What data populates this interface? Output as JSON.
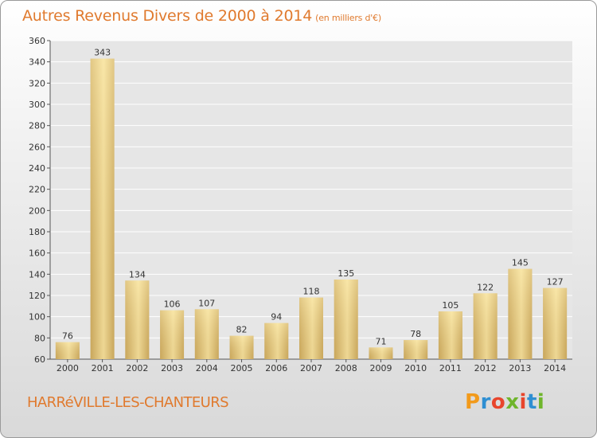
{
  "header": {
    "title": "Autres Revenus Divers de 2000 à 2014",
    "unit": "(en milliers d'€)"
  },
  "footer": {
    "commune": "HARRéVILLE-LES-CHANTEURS",
    "logo_letters": [
      "P",
      "r",
      "o",
      "x",
      "i",
      "t",
      "i"
    ],
    "logo_colors": [
      "#f29a1b",
      "#2f8fd2",
      "#e8452c",
      "#6fb52c",
      "#e8452c",
      "#2f8fd2",
      "#6fb52c"
    ]
  },
  "colors": {
    "title": "#e07a2e",
    "bar_light": "#f7e3a0",
    "bar_dark": "#c9a65a",
    "grid": "#ffffff",
    "plot_bg": "#e6e6e6"
  },
  "chart_data": {
    "type": "bar",
    "title": "Autres Revenus Divers de 2000 à 2014",
    "subtitle": "(en milliers d'€)",
    "categories": [
      "2000",
      "2001",
      "2002",
      "2003",
      "2004",
      "2005",
      "2006",
      "2007",
      "2008",
      "2009",
      "2010",
      "2011",
      "2012",
      "2013",
      "2014"
    ],
    "values": [
      76,
      343,
      134,
      106,
      107,
      82,
      94,
      118,
      135,
      71,
      78,
      105,
      122,
      145,
      127
    ],
    "ylim": [
      60,
      360
    ],
    "yticks": [
      60,
      80,
      100,
      120,
      140,
      160,
      180,
      200,
      220,
      240,
      260,
      280,
      300,
      320,
      340,
      360
    ],
    "grid": true,
    "legend": "none",
    "xlabel": "",
    "ylabel": ""
  }
}
